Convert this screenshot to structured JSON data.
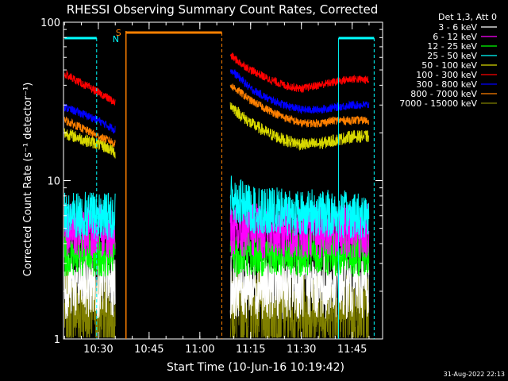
{
  "chart_data": {
    "type": "line",
    "title": "RHESSI Observing Summary Count Rates, Corrected",
    "xlabel": "Start Time (10-Jun-16 10:19:42)",
    "ylabel": "Corrected Count Rate (s⁻¹ detector⁻¹)",
    "footer": "31-Aug-2022 22:13",
    "yscale": "log",
    "ylim": [
      1,
      100
    ],
    "y_tick_labels": [
      "1",
      "10",
      "100"
    ],
    "xlim": [
      "10:19:42",
      "11:54:00"
    ],
    "x_tick_labels": [
      "10:30",
      "10:45",
      "11:00",
      "11:15",
      "11:30",
      "11:45"
    ],
    "legend": {
      "header": "Det 1,3, Att 0",
      "placement": "top-right outside",
      "entries": [
        {
          "label": "3 - 6 keV",
          "color": "#ffffff"
        },
        {
          "label": "6 - 12 keV",
          "color": "#ff00ff"
        },
        {
          "label": "12 - 25 keV",
          "color": "#00ff00"
        },
        {
          "label": "25 - 50 keV",
          "color": "#00ffff"
        },
        {
          "label": "50 - 100 keV",
          "color": "#d8d800"
        },
        {
          "label": "100 - 300 keV",
          "color": "#ff0000"
        },
        {
          "label": "300 - 800 keV",
          "color": "#0000ff"
        },
        {
          "label": "800 - 7000 keV",
          "color": "#ff8000"
        },
        {
          "label": "7000 - 15000 keV",
          "color": "#808000"
        }
      ]
    },
    "annotations": {
      "saa_marker": "S",
      "night_marker": "N",
      "saa_interval": [
        "10:38:10",
        "11:06:30"
      ],
      "night_bars": [
        [
          "10:20:00",
          "10:29:30"
        ],
        [
          "11:41:00",
          "11:51:30"
        ]
      ]
    },
    "series": [
      {
        "name": "100 - 300 keV",
        "color": "#ff0000",
        "segments": [
          {
            "x": [
              "10:20",
              "10:26",
              "10:30",
              "10:33",
              "10:35"
            ],
            "y": [
              47,
              40,
              36,
              33,
              31
            ]
          },
          {
            "x": [
              "11:09",
              "11:12",
              "11:15",
              "11:20",
              "11:25",
              "11:30",
              "11:35",
              "11:40",
              "11:45",
              "11:50"
            ],
            "y": [
              62,
              55,
              50,
              44,
              40,
              38,
              40,
              42,
              44,
              43
            ]
          }
        ]
      },
      {
        "name": "300 - 800 keV",
        "color": "#0000ff",
        "segments": [
          {
            "x": [
              "10:20",
              "10:26",
              "10:30",
              "10:33",
              "10:35"
            ],
            "y": [
              29,
              26,
              24,
              22,
              21
            ]
          },
          {
            "x": [
              "11:09",
              "11:12",
              "11:15",
              "11:20",
              "11:25",
              "11:30",
              "11:35",
              "11:40",
              "11:45",
              "11:50"
            ],
            "y": [
              50,
              44,
              38,
              33,
              30,
              28,
              28,
              29,
              30,
              30
            ]
          }
        ]
      },
      {
        "name": "800 - 7000 keV",
        "color": "#ff8000",
        "segments": [
          {
            "x": [
              "10:20",
              "10:26",
              "10:30",
              "10:33",
              "10:35"
            ],
            "y": [
              24,
              21,
              19,
              18,
              17
            ]
          },
          {
            "x": [
              "11:09",
              "11:12",
              "11:15",
              "11:20",
              "11:25",
              "11:30",
              "11:35",
              "11:40",
              "11:45",
              "11:50"
            ],
            "y": [
              40,
              36,
              32,
              28,
              25,
              23,
              23,
              24,
              24,
              24
            ]
          }
        ]
      },
      {
        "name": "50 - 100 keV",
        "color": "#d8d800",
        "segments": [
          {
            "x": [
              "10:20",
              "10:26",
              "10:30",
              "10:33",
              "10:35"
            ],
            "y": [
              20,
              18,
              17,
              16,
              15
            ]
          },
          {
            "x": [
              "11:09",
              "11:12",
              "11:15",
              "11:20",
              "11:25",
              "11:30",
              "11:35",
              "11:40",
              "11:45",
              "11:50"
            ],
            "y": [
              30,
              26,
              23,
              20,
              18,
              17,
              17,
              18,
              19,
              19
            ]
          }
        ]
      },
      {
        "name": "25 - 50 keV",
        "color": "#00ffff",
        "segments": [
          {
            "x": [
              "10:20",
              "10:35"
            ],
            "y": [
              6.0,
              6.0
            ]
          },
          {
            "x": [
              "11:09",
              "11:15",
              "11:50"
            ],
            "y": [
              8.0,
              6.5,
              6.0
            ]
          }
        ]
      },
      {
        "name": "6 - 12 keV",
        "color": "#ff00ff",
        "segments": [
          {
            "x": [
              "10:20",
              "10:35"
            ],
            "y": [
              4.8,
              4.8
            ]
          },
          {
            "x": [
              "11:09",
              "11:50"
            ],
            "y": [
              4.8,
              4.8
            ]
          }
        ]
      },
      {
        "name": "12 - 25 keV",
        "color": "#00ff00",
        "segments": [
          {
            "x": [
              "10:20",
              "10:35"
            ],
            "y": [
              3.5,
              3.5
            ]
          },
          {
            "x": [
              "11:09",
              "11:50"
            ],
            "y": [
              3.5,
              3.5
            ]
          }
        ]
      },
      {
        "name": "3 - 6 keV",
        "color": "#ffffff",
        "segments": [
          {
            "x": [
              "10:20",
              "10:35"
            ],
            "y": [
              2.2,
              2.2
            ]
          },
          {
            "x": [
              "11:09",
              "11:50"
            ],
            "y": [
              2.2,
              2.2
            ]
          }
        ]
      },
      {
        "name": "7000 - 15000 keV",
        "color": "#808000",
        "segments": [
          {
            "x": [
              "10:20",
              "10:35"
            ],
            "y": [
              1.5,
              1.5
            ]
          },
          {
            "x": [
              "11:09",
              "11:50"
            ],
            "y": [
              1.5,
              1.5
            ]
          }
        ]
      }
    ]
  }
}
